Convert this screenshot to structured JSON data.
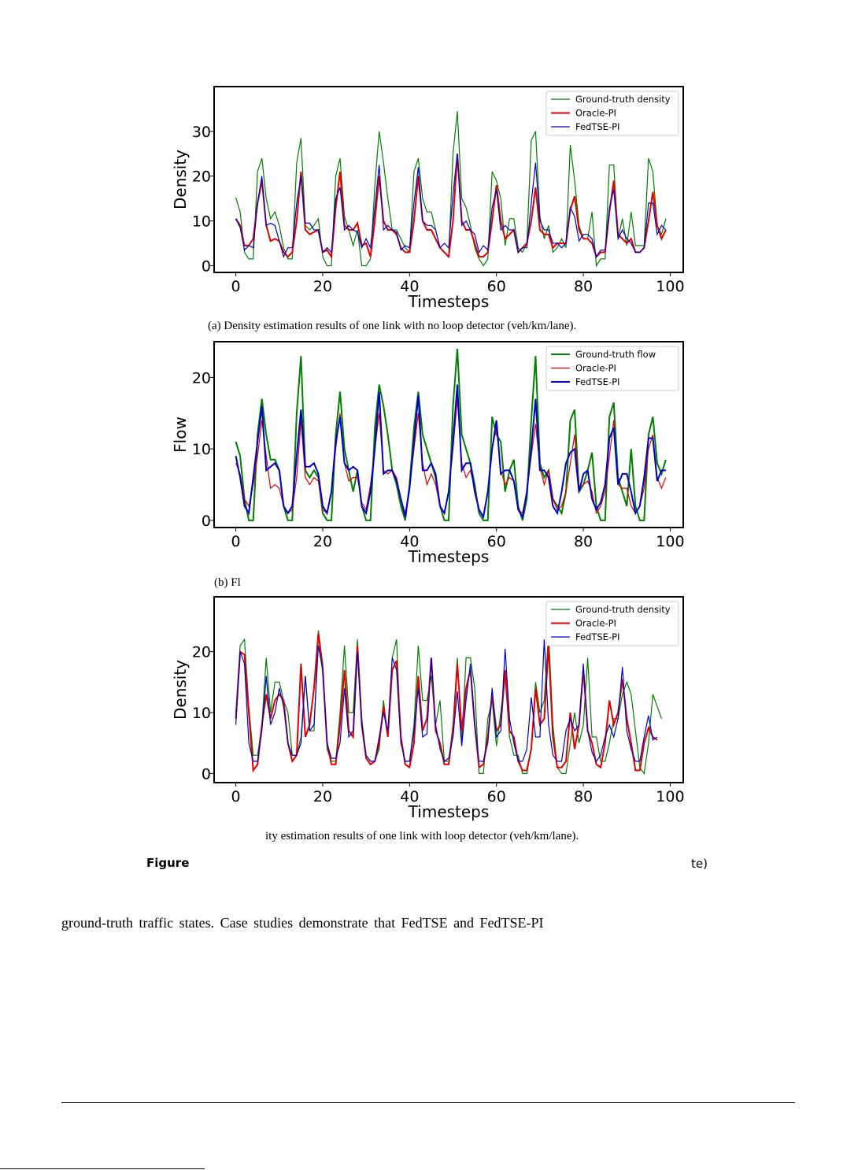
{
  "colors": {
    "ground_truth": "#007f00",
    "oracle": "#e00000",
    "fedtse": "#0000cc",
    "axis": "#000000"
  },
  "chart_data": [
    {
      "type": "line",
      "ylabel": "Density",
      "xlabel": "Timesteps",
      "xlim": [
        -5,
        103
      ],
      "ylim": [
        -1.5,
        40
      ],
      "xticks": [
        0,
        20,
        40,
        60,
        80,
        100
      ],
      "yticks": [
        0,
        10,
        20,
        30
      ],
      "legend_position": "top-right",
      "caption": "(a) Density estimation results of one link with no loop detector (veh/km/lane).",
      "series": [
        {
          "name": "Ground-truth density",
          "color": "#007f00",
          "width": 1.2,
          "values": [
            15.2,
            12,
            3,
            1.5,
            1.5,
            21,
            24,
            15,
            10.5,
            12,
            9,
            4,
            1.5,
            1.5,
            23,
            28.5,
            9,
            8,
            9,
            10.5,
            2,
            0,
            0,
            20,
            24,
            11,
            8,
            4.5,
            8,
            0,
            0,
            1.5,
            18,
            30,
            23,
            15,
            8,
            8,
            6,
            4,
            3,
            21,
            24,
            15,
            12,
            12,
            8,
            4,
            3,
            2,
            25,
            34.5,
            15,
            13,
            9,
            4,
            1.5,
            0,
            1.5,
            21,
            19,
            15,
            4.5,
            10.5,
            10.5,
            4,
            3,
            5,
            28,
            30,
            11,
            6,
            9,
            3,
            4,
            6,
            4,
            27,
            19,
            9,
            6,
            6,
            12,
            0,
            1.5,
            1.5,
            22.5,
            22.5,
            6,
            10.5,
            4.5,
            12,
            4.5,
            4.5,
            4.5,
            24,
            21,
            9,
            7,
            10.5
          ]
        },
        {
          "name": "Oracle-PI",
          "color": "#e00000",
          "width": 2.0,
          "values": [
            10.5,
            9,
            4.5,
            4.5,
            6,
            14,
            19,
            9,
            5.5,
            6,
            5.5,
            3,
            2,
            3,
            10,
            21,
            8,
            7,
            7.5,
            8,
            3,
            3.5,
            2,
            13,
            21,
            9,
            8,
            8,
            9.5,
            4.5,
            5,
            2,
            10,
            20,
            10,
            8,
            8,
            7,
            4,
            3,
            3,
            10,
            20,
            10,
            8,
            8,
            6,
            4,
            3,
            2,
            10,
            25,
            10,
            8,
            8,
            5,
            2,
            2,
            3,
            10,
            18,
            10,
            6,
            7,
            8,
            3,
            4,
            5,
            10,
            17.5,
            8,
            7,
            7,
            4,
            5,
            5,
            5,
            12.5,
            15.5,
            8,
            6,
            6,
            5,
            2,
            3,
            3,
            12,
            19,
            7,
            6,
            5,
            6,
            3,
            3,
            4,
            10,
            16.5,
            9,
            6,
            8
          ]
        },
        {
          "name": "FedTSE-PI",
          "color": "#0000cc",
          "width": 1.2,
          "values": [
            10.5,
            8.5,
            3.5,
            4.5,
            4,
            14,
            20,
            9,
            9.5,
            9,
            5.5,
            2,
            4,
            4,
            14,
            20,
            9.5,
            9.5,
            8,
            8,
            3,
            4,
            3,
            15,
            17.5,
            8,
            9,
            8,
            7.5,
            4,
            6,
            4,
            13,
            22.5,
            8,
            9,
            8,
            7.5,
            3.5,
            4.5,
            4,
            14,
            22,
            10,
            9,
            9,
            8,
            4,
            5,
            4,
            16,
            25,
            9,
            10,
            8,
            7,
            3,
            4.5,
            3.5,
            13,
            17,
            8,
            9,
            8,
            8,
            3,
            4,
            4,
            14,
            23,
            10,
            8,
            8,
            5,
            5,
            4,
            5,
            13,
            11,
            5.5,
            7,
            7,
            6,
            2,
            3.5,
            3.5,
            13,
            17,
            6,
            8,
            6,
            5,
            3,
            3,
            4,
            14,
            14,
            7,
            9,
            8
          ]
        }
      ]
    },
    {
      "type": "line",
      "ylabel": "Flow",
      "xlabel": "Timesteps",
      "xlim": [
        -5,
        103
      ],
      "ylim": [
        -1,
        25
      ],
      "xticks": [
        0,
        20,
        40,
        60,
        80,
        100
      ],
      "yticks": [
        0,
        10,
        20
      ],
      "legend_position": "top-right",
      "caption": "(b) Fl",
      "series": [
        {
          "name": "Ground-truth flow",
          "color": "#007f00",
          "width": 2.0,
          "values": [
            11,
            9,
            3,
            0,
            0,
            12,
            17,
            12,
            8.5,
            8.5,
            7,
            2,
            0,
            0,
            15,
            23,
            7,
            6,
            7,
            6,
            1,
            0,
            0,
            12,
            18,
            10,
            7,
            4,
            7,
            2,
            0,
            0,
            13,
            19,
            16,
            12,
            7,
            5,
            2,
            0,
            5,
            13,
            18,
            12,
            10,
            8,
            6,
            2,
            0,
            0,
            16,
            24,
            12,
            10,
            8,
            5,
            1,
            0,
            0,
            14.5,
            12,
            11,
            4,
            7,
            8.5,
            2,
            0,
            3,
            14,
            23,
            8,
            6,
            7,
            3,
            2,
            1,
            4,
            14,
            15.5,
            4,
            5,
            7,
            9.5,
            2,
            0,
            0,
            14.5,
            16.5,
            6,
            4,
            2,
            10,
            2,
            0,
            0,
            12,
            14.5,
            8,
            6.5,
            8.5
          ]
        },
        {
          "name": "Oracle-PI",
          "color": "#e00000",
          "width": 1.2,
          "values": [
            8,
            6.5,
            3,
            2,
            5,
            9,
            14,
            9,
            4.5,
            5,
            4.5,
            2,
            1,
            1.5,
            6,
            14,
            6,
            5,
            6,
            5.5,
            1.5,
            1,
            4,
            10,
            15,
            8,
            5.5,
            6,
            6,
            2.5,
            1.5,
            5,
            10,
            15,
            7,
            6.5,
            7,
            6,
            3,
            1,
            4.5,
            10,
            15,
            8,
            5,
            6.5,
            5,
            2,
            1,
            4,
            10,
            17,
            8,
            6,
            7,
            4.5,
            1.5,
            0.5,
            4,
            10,
            13,
            7,
            5,
            6,
            5.5,
            1.5,
            1,
            4,
            9,
            13.5,
            7.5,
            5,
            7,
            3,
            1.5,
            2,
            4,
            8,
            12,
            4.5,
            5,
            5.5,
            4,
            1,
            2,
            4,
            9,
            14,
            5,
            4.5,
            4.5,
            2,
            1,
            2,
            4.5,
            10,
            12,
            6,
            4.5,
            6
          ]
        },
        {
          "name": "FedTSE-PI",
          "color": "#0000cc",
          "width": 2.0,
          "values": [
            9,
            6,
            2,
            1,
            6,
            11,
            16,
            7,
            7.5,
            8,
            7,
            2,
            1,
            2,
            9,
            15.5,
            7.5,
            7.5,
            8,
            6.5,
            2,
            1,
            4,
            11,
            14.5,
            8,
            7,
            7.5,
            7,
            2,
            1,
            4,
            10,
            18,
            6.5,
            7,
            7,
            5.5,
            3,
            0.5,
            4.5,
            11,
            17.5,
            7,
            7,
            8,
            6.5,
            2,
            1,
            4,
            11,
            19,
            7,
            8,
            8,
            4,
            1.5,
            0.5,
            4,
            10,
            14,
            6.5,
            7,
            7,
            5.5,
            1.5,
            0.5,
            4,
            10,
            17,
            7,
            7,
            6,
            2,
            1,
            4,
            8,
            9.5,
            10,
            4,
            6.5,
            7,
            3,
            1.5,
            2.5,
            5,
            11.5,
            13,
            5,
            6.5,
            6.5,
            4,
            1,
            2,
            6,
            11.5,
            11.5,
            5.5,
            7,
            7
          ]
        }
      ]
    },
    {
      "type": "line",
      "ylabel": "Density",
      "xlabel": "Timesteps",
      "xlim": [
        -5,
        103
      ],
      "ylim": [
        -1.5,
        29
      ],
      "xticks": [
        0,
        20,
        40,
        60,
        80,
        100
      ],
      "yticks": [
        0,
        10,
        20
      ],
      "legend_position": "top-right",
      "caption": "ity estimation results of one link with loop detector (veh/km/lane).",
      "series": [
        {
          "name": "Ground-truth density",
          "color": "#007f00",
          "width": 1.2,
          "values": [
            10,
            21,
            22,
            11,
            3,
            3,
            8,
            19,
            10,
            15,
            15,
            12,
            10,
            3,
            3,
            6,
            16,
            7,
            7,
            23.5,
            18,
            4,
            2,
            2,
            10,
            21,
            10,
            10,
            22,
            9,
            3,
            2,
            2,
            4,
            12,
            6,
            19,
            22,
            5,
            2,
            2,
            8,
            21,
            12,
            12,
            16,
            8,
            12,
            2,
            2,
            8,
            19,
            5,
            19,
            19,
            14,
            0,
            0,
            9,
            12,
            4.5,
            10,
            16,
            6,
            3,
            3,
            0,
            0,
            4,
            15,
            10,
            12,
            23,
            8,
            1,
            0,
            0,
            5,
            10,
            5,
            8,
            19,
            6,
            6,
            2,
            2,
            5,
            9,
            9,
            13,
            15,
            13,
            7,
            1,
            0,
            5,
            13,
            11,
            9
          ]
        },
        {
          "name": "Oracle-PI",
          "color": "#e00000",
          "width": 2.0,
          "values": [
            9,
            20,
            19.5,
            10,
            0.5,
            1.5,
            8,
            13,
            9,
            12,
            13,
            12,
            5,
            2,
            3,
            18,
            6,
            8,
            14,
            23,
            17,
            5,
            1.5,
            1.5,
            8,
            17,
            7,
            6,
            21,
            8,
            2.5,
            1.5,
            2,
            5,
            11,
            6,
            17,
            18.5,
            6,
            1.5,
            1,
            5,
            16,
            7,
            9,
            19,
            7,
            5,
            1.5,
            1.5,
            7,
            18,
            7,
            14,
            17,
            8,
            1,
            1.5,
            6,
            13,
            7,
            8,
            17,
            7,
            6,
            2,
            0.5,
            0.5,
            4,
            14,
            8,
            9,
            21,
            6,
            1,
            1,
            2,
            10,
            4,
            8,
            17,
            7,
            5,
            1.5,
            1,
            5,
            12,
            8,
            10,
            15.5,
            9,
            5,
            0.5,
            0.5,
            5,
            7.5,
            6,
            5.5
          ]
        },
        {
          "name": "FedTSE-PI",
          "color": "#0000cc",
          "width": 1.2,
          "values": [
            8,
            20,
            18,
            5,
            2,
            2,
            7,
            16,
            8,
            10,
            14,
            11,
            5,
            3,
            3,
            5,
            16,
            7,
            8,
            21,
            17,
            5,
            2.5,
            2.5,
            5,
            14,
            6,
            7,
            20,
            8,
            3,
            2,
            2,
            6,
            10,
            7,
            19,
            17,
            5,
            2,
            2,
            7,
            14,
            6,
            6.5,
            19,
            8,
            4,
            2,
            2.5,
            6,
            13.5,
            4.5,
            12,
            18,
            8,
            2,
            2,
            5,
            14,
            6,
            7,
            20.5,
            9,
            5,
            2,
            2,
            4,
            12.5,
            6,
            6,
            22,
            8,
            3,
            2,
            2,
            7,
            9,
            7,
            8,
            18,
            7,
            3.5,
            2,
            3,
            6,
            8,
            6,
            9,
            17.5,
            7,
            4,
            2,
            2,
            6,
            9.5,
            5.5,
            6
          ]
        }
      ]
    }
  ],
  "figure_label": "Figure",
  "figure_tail": "te)",
  "body_text": "ground-truth traffic states. Case studies demonstrate that FedTSE and FedTSE-PI"
}
